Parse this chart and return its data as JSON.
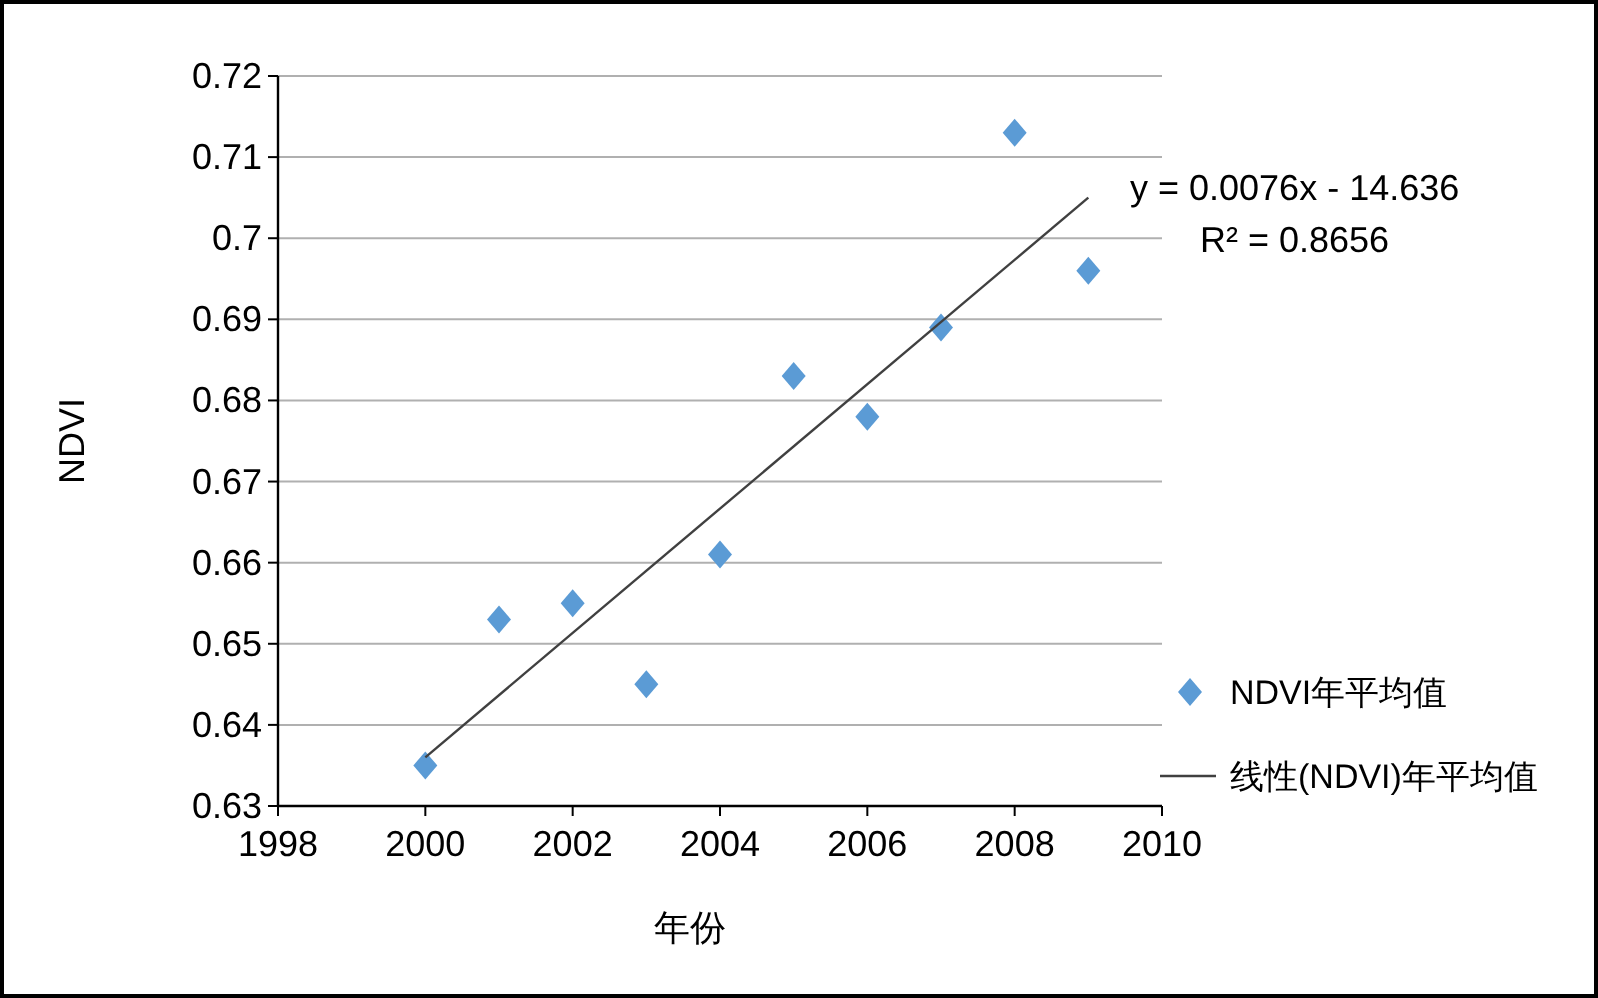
{
  "chart_data": {
    "type": "scatter",
    "xlabel": "年份",
    "ylabel": "NDVI",
    "x": [
      2000,
      2001,
      2002,
      2003,
      2004,
      2005,
      2006,
      2007,
      2008,
      2009
    ],
    "series": [
      {
        "name": "NDVI年平均值",
        "color": "#5b9bd5",
        "marker": "diamond",
        "values": [
          0.635,
          0.653,
          0.655,
          0.645,
          0.661,
          0.683,
          0.678,
          0.689,
          0.713,
          0.696
        ]
      },
      {
        "name": "线性(NDVI)年平均值",
        "type": "line",
        "color": "#404040",
        "marker": "none",
        "x": [
          2000,
          2009
        ],
        "values": [
          0.636,
          0.705
        ]
      }
    ],
    "annotations": [
      "y = 0.0076x - 14.636",
      "R² = 0.8656"
    ],
    "xlim": [
      1998,
      2010
    ],
    "xticks": [
      1998,
      2000,
      2002,
      2004,
      2006,
      2008,
      2010
    ],
    "ylim": [
      0.63,
      0.72
    ],
    "yticks": [
      0.63,
      0.64,
      0.65,
      0.66,
      0.67,
      0.68,
      0.69,
      0.7,
      0.71,
      0.72
    ],
    "grid": "y",
    "legend": "right"
  }
}
